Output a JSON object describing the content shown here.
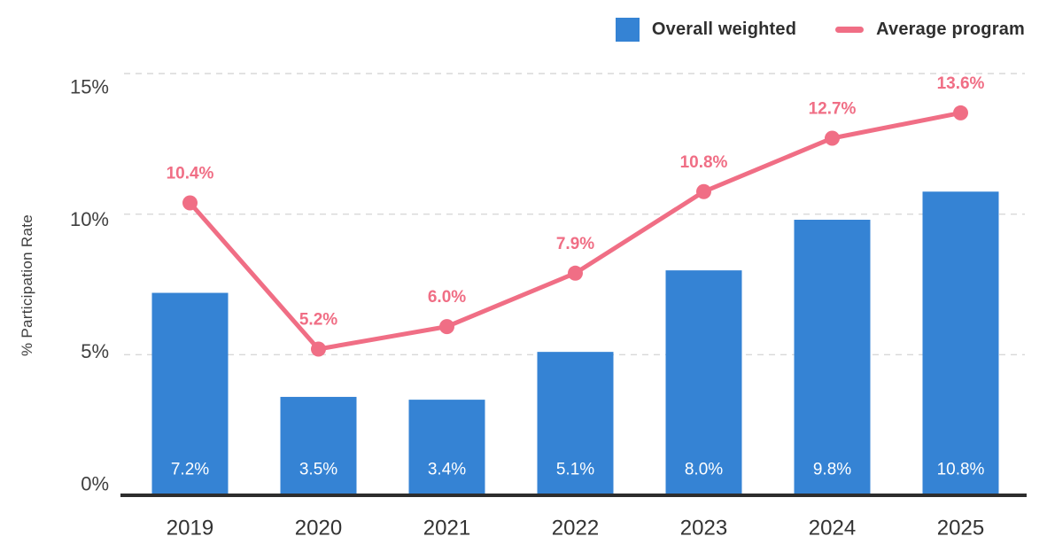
{
  "legend": {
    "items": [
      {
        "label": "Overall weighted",
        "swatch": "square",
        "color": "#3583d4"
      },
      {
        "label": "Average program",
        "swatch": "line",
        "color": "#f06e85"
      }
    ]
  },
  "y_axis": {
    "title": "% Participation Rate"
  },
  "chart_data": {
    "type": "bar",
    "title": "",
    "xlabel": "",
    "ylabel": "% Participation Rate",
    "categories": [
      "2019",
      "2020",
      "2021",
      "2022",
      "2023",
      "2024",
      "2025"
    ],
    "series": [
      {
        "name": "Overall weighted",
        "type": "bar",
        "color": "#3583d4",
        "values": [
          7.2,
          3.5,
          3.4,
          5.1,
          8.0,
          9.8,
          10.8
        ],
        "labels": [
          "7.2%",
          "3.5%",
          "3.4%",
          "5.1%",
          "8.0%",
          "9.8%",
          "10.8%"
        ]
      },
      {
        "name": "Average program",
        "type": "line",
        "color": "#f06e85",
        "values": [
          10.4,
          5.2,
          6.0,
          7.9,
          10.8,
          12.7,
          13.6
        ],
        "labels": [
          "10.4%",
          "5.2%",
          "6.0%",
          "7.9%",
          "10.8%",
          "12.7%",
          "13.6%"
        ]
      }
    ],
    "ylim": [
      0,
      15
    ],
    "yticks": [
      0,
      5,
      10,
      15
    ],
    "ytick_labels": [
      "0%",
      "5%",
      "10%",
      "15%"
    ],
    "grid": "dashed horizontal",
    "legend_position": "top-right",
    "colors": {
      "axis_line": "#2d2d2d",
      "grid_line": "#d8d8d8",
      "tick_text": "#3f3f3f",
      "category_text": "#333333",
      "bar_value_text": "#ffffff"
    }
  }
}
